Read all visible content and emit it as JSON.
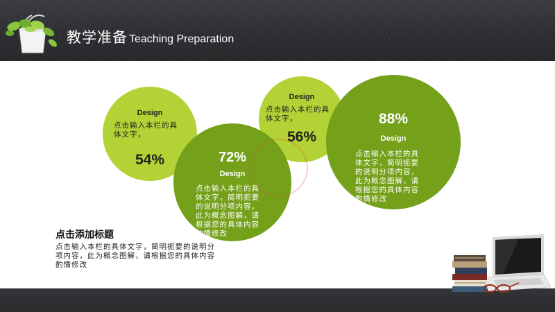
{
  "header": {
    "title_cn": "教学准备",
    "title_en": "Teaching Preparation",
    "icon": "plant-pot-icon"
  },
  "circles": [
    {
      "heading": "Design",
      "body_lines": [
        "点击输入本栏的具",
        "体文字，"
      ],
      "percent": "54%"
    },
    {
      "heading": "Design",
      "body_lines": [
        "点击输入本栏的具",
        "体文字，简明扼要",
        "的说明分项内容，",
        "此为概念图解，请",
        "根据您的具体内容",
        "酌情修改"
      ],
      "percent": "72%"
    },
    {
      "heading": "Design",
      "body_lines": [
        "点击输入本栏的具",
        "体文字，"
      ],
      "percent": "56%"
    },
    {
      "heading": "Design",
      "body_lines": [
        "点击输入本栏的具",
        "体文字，简明扼要",
        "的说明分项内容，",
        "此为概念图解，请",
        "根据您的具体内容",
        "酌情修改"
      ],
      "percent": "88%"
    }
  ],
  "section": {
    "title": "点击添加标题",
    "body_lines": [
      "点击输入本栏的具体文字，简明扼要的说明分",
      "项内容，此为概念图解，请根据您的具体内容",
      "酌情修改"
    ]
  },
  "decor": {
    "books_laptop": "laptop-books-glasses-icon"
  },
  "colors": {
    "header_bg": "#2b2d30",
    "light_green": "#b2d235",
    "dark_green": "#74a01a"
  }
}
